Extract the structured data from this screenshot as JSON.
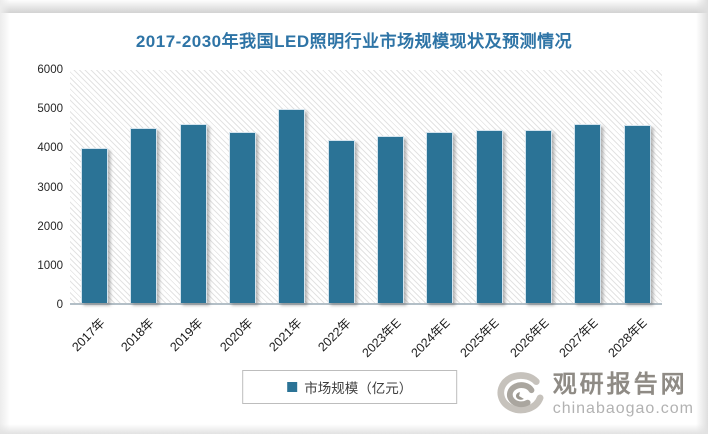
{
  "title": "2017-2030年我国LED照明行业市场规模现状及预测情况",
  "chart_data": {
    "type": "bar",
    "title": "2017-2030年我国LED照明行业市场规模现状及预测情况",
    "categories": [
      "2017年",
      "2018年",
      "2019年",
      "2020年",
      "2021年",
      "2022年",
      "2023年E",
      "2024年E",
      "2025年E",
      "2026年E",
      "2027年E",
      "2028年E"
    ],
    "values": [
      4000,
      4500,
      4600,
      4400,
      5000,
      4200,
      4300,
      4400,
      4450,
      4450,
      4600,
      4580
    ],
    "series_name": "市场规模（亿元）",
    "xlabel": "",
    "ylabel": "",
    "ylim": [
      0,
      6000
    ],
    "yticks": [
      0,
      1000,
      2000,
      3000,
      4000,
      5000,
      6000
    ],
    "grid": false,
    "legend_position": "bottom",
    "bar_color": "#2B7396",
    "plot_background": "diagonal-hatch"
  },
  "legend": {
    "label": "市场规模（亿元）"
  },
  "watermark": {
    "site_name": "观研报告网",
    "site_url": "chinabaogao.com"
  },
  "colors": {
    "title": "#2E74A6",
    "bar": "#2B7396",
    "axis_line": "#b3bfc7"
  }
}
